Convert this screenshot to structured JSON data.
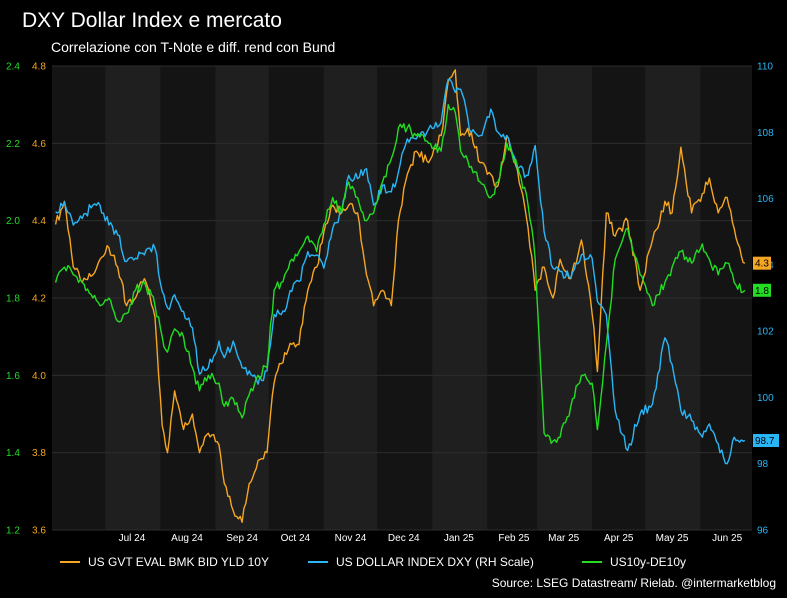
{
  "chart_data": {
    "type": "line",
    "title": "DXY Dollar Index e mercato",
    "subtitle": "Correlazione con T-Note e diff. rend con Bund",
    "source": "Source: LSEG Datastream/ Rielab. @intermarketblog",
    "x_ticks": [
      "Jul 24",
      "Aug 24",
      "Sep 24",
      "Oct 24",
      "Nov 24",
      "Dec 24",
      "Jan 25",
      "Feb 25",
      "Mar 25",
      "Apr 25",
      "May 25",
      "Jun 25"
    ],
    "x_range": [
      "2024-06-01",
      "2025-06-30"
    ],
    "grid": true,
    "legend_position": "bottom",
    "axes": {
      "left_outer": {
        "label": "",
        "ticks": [
          "1.2",
          "1.4",
          "1.6",
          "1.8",
          "2.0",
          "2.2",
          "2.4"
        ],
        "range": [
          1.2,
          2.4
        ],
        "color": "#22dd22"
      },
      "left_inner": {
        "label": "",
        "ticks": [
          "3.6",
          "3.8",
          "4.0",
          "4.2",
          "4.4",
          "4.6",
          "4.8"
        ],
        "range": [
          3.6,
          4.8
        ],
        "color": "#f5a623"
      },
      "right": {
        "label": "",
        "ticks": [
          "96",
          "98",
          "100",
          "102",
          "104",
          "106",
          "108",
          "110"
        ],
        "range": [
          96,
          110
        ],
        "color": "#29b6f6"
      }
    },
    "series": [
      {
        "name": "US GVT EVAL BMK BID YLD 10Y",
        "axis": "left_inner",
        "color": "#f5a623",
        "last_value_label": "4.3",
        "points": [
          [
            "2024-06-03",
            4.39
          ],
          [
            "2024-06-08",
            4.45
          ],
          [
            "2024-06-13",
            4.28
          ],
          [
            "2024-06-18",
            4.24
          ],
          [
            "2024-06-24",
            4.26
          ],
          [
            "2024-06-28",
            4.3
          ],
          [
            "2024-07-03",
            4.33
          ],
          [
            "2024-07-08",
            4.28
          ],
          [
            "2024-07-13",
            4.18
          ],
          [
            "2024-07-18",
            4.2
          ],
          [
            "2024-07-23",
            4.25
          ],
          [
            "2024-07-29",
            4.15
          ],
          [
            "2024-08-02",
            3.87
          ],
          [
            "2024-08-05",
            3.8
          ],
          [
            "2024-08-09",
            3.96
          ],
          [
            "2024-08-14",
            3.86
          ],
          [
            "2024-08-19",
            3.9
          ],
          [
            "2024-08-23",
            3.8
          ],
          [
            "2024-08-28",
            3.85
          ],
          [
            "2024-09-03",
            3.82
          ],
          [
            "2024-09-06",
            3.72
          ],
          [
            "2024-09-11",
            3.65
          ],
          [
            "2024-09-16",
            3.62
          ],
          [
            "2024-09-20",
            3.72
          ],
          [
            "2024-09-25",
            3.78
          ],
          [
            "2024-09-30",
            3.8
          ],
          [
            "2024-10-04",
            3.98
          ],
          [
            "2024-10-08",
            4.03
          ],
          [
            "2024-10-14",
            4.08
          ],
          [
            "2024-10-18",
            4.08
          ],
          [
            "2024-10-23",
            4.22
          ],
          [
            "2024-10-28",
            4.28
          ],
          [
            "2024-11-01",
            4.37
          ],
          [
            "2024-11-06",
            4.44
          ],
          [
            "2024-11-11",
            4.42
          ],
          [
            "2024-11-15",
            4.44
          ],
          [
            "2024-11-20",
            4.42
          ],
          [
            "2024-11-25",
            4.26
          ],
          [
            "2024-11-29",
            4.18
          ],
          [
            "2024-12-04",
            4.22
          ],
          [
            "2024-12-09",
            4.18
          ],
          [
            "2024-12-13",
            4.4
          ],
          [
            "2024-12-18",
            4.52
          ],
          [
            "2024-12-23",
            4.58
          ],
          [
            "2024-12-30",
            4.55
          ],
          [
            "2025-01-06",
            4.62
          ],
          [
            "2025-01-10",
            4.76
          ],
          [
            "2025-01-14",
            4.79
          ],
          [
            "2025-01-17",
            4.62
          ],
          [
            "2025-01-23",
            4.63
          ],
          [
            "2025-01-28",
            4.55
          ],
          [
            "2025-02-03",
            4.52
          ],
          [
            "2025-02-07",
            4.49
          ],
          [
            "2025-02-12",
            4.62
          ],
          [
            "2025-02-18",
            4.53
          ],
          [
            "2025-02-24",
            4.38
          ],
          [
            "2025-02-28",
            4.22
          ],
          [
            "2025-03-05",
            4.28
          ],
          [
            "2025-03-10",
            4.2
          ],
          [
            "2025-03-14",
            4.3
          ],
          [
            "2025-03-20",
            4.25
          ],
          [
            "2025-03-26",
            4.35
          ],
          [
            "2025-04-01",
            4.16
          ],
          [
            "2025-04-04",
            4.01
          ],
          [
            "2025-04-09",
            4.42
          ],
          [
            "2025-04-14",
            4.36
          ],
          [
            "2025-04-21",
            4.4
          ],
          [
            "2025-04-28",
            4.22
          ],
          [
            "2025-05-05",
            4.35
          ],
          [
            "2025-05-12",
            4.45
          ],
          [
            "2025-05-16",
            4.42
          ],
          [
            "2025-05-21",
            4.59
          ],
          [
            "2025-05-27",
            4.42
          ],
          [
            "2025-06-02",
            4.47
          ],
          [
            "2025-06-06",
            4.51
          ],
          [
            "2025-06-11",
            4.42
          ],
          [
            "2025-06-16",
            4.46
          ],
          [
            "2025-06-20",
            4.38
          ],
          [
            "2025-06-26",
            4.29
          ]
        ]
      },
      {
        "name": "US DOLLAR INDEX DXY (RH Scale)",
        "axis": "right",
        "color": "#29b6f6",
        "last_value_label": "98.7",
        "points": [
          [
            "2024-06-03",
            105.6
          ],
          [
            "2024-06-08",
            105.9
          ],
          [
            "2024-06-13",
            105.2
          ],
          [
            "2024-06-18",
            105.4
          ],
          [
            "2024-06-24",
            105.8
          ],
          [
            "2024-06-28",
            105.8
          ],
          [
            "2024-07-03",
            105.2
          ],
          [
            "2024-07-08",
            104.9
          ],
          [
            "2024-07-13",
            104.1
          ],
          [
            "2024-07-18",
            104.2
          ],
          [
            "2024-07-23",
            104.3
          ],
          [
            "2024-07-29",
            104.5
          ],
          [
            "2024-08-02",
            103.2
          ],
          [
            "2024-08-05",
            102.7
          ],
          [
            "2024-08-09",
            103.1
          ],
          [
            "2024-08-14",
            102.6
          ],
          [
            "2024-08-19",
            102.1
          ],
          [
            "2024-08-23",
            100.7
          ],
          [
            "2024-08-28",
            100.9
          ],
          [
            "2024-09-03",
            101.7
          ],
          [
            "2024-09-06",
            101.2
          ],
          [
            "2024-09-11",
            101.7
          ],
          [
            "2024-09-16",
            100.9
          ],
          [
            "2024-09-20",
            100.8
          ],
          [
            "2024-09-25",
            100.4
          ],
          [
            "2024-09-30",
            100.8
          ],
          [
            "2024-10-04",
            102.5
          ],
          [
            "2024-10-08",
            102.5
          ],
          [
            "2024-10-14",
            103.2
          ],
          [
            "2024-10-18",
            103.5
          ],
          [
            "2024-10-23",
            104.4
          ],
          [
            "2024-10-28",
            104.3
          ],
          [
            "2024-11-01",
            103.9
          ],
          [
            "2024-11-06",
            105.1
          ],
          [
            "2024-11-11",
            105.6
          ],
          [
            "2024-11-15",
            106.7
          ],
          [
            "2024-11-20",
            106.6
          ],
          [
            "2024-11-25",
            106.9
          ],
          [
            "2024-11-29",
            105.8
          ],
          [
            "2024-12-04",
            106.4
          ],
          [
            "2024-12-09",
            106.2
          ],
          [
            "2024-12-13",
            106.8
          ],
          [
            "2024-12-18",
            107.8
          ],
          [
            "2024-12-23",
            107.8
          ],
          [
            "2024-12-30",
            108.1
          ],
          [
            "2025-01-06",
            108.3
          ],
          [
            "2025-01-10",
            109.6
          ],
          [
            "2025-01-14",
            109.2
          ],
          [
            "2025-01-17",
            109.3
          ],
          [
            "2025-01-23",
            108.0
          ],
          [
            "2025-01-28",
            107.9
          ],
          [
            "2025-02-03",
            108.7
          ],
          [
            "2025-02-07",
            108.0
          ],
          [
            "2025-02-12",
            107.9
          ],
          [
            "2025-02-18",
            106.9
          ],
          [
            "2025-02-24",
            106.7
          ],
          [
            "2025-02-28",
            107.6
          ],
          [
            "2025-03-05",
            105.0
          ],
          [
            "2025-03-10",
            103.9
          ],
          [
            "2025-03-14",
            103.8
          ],
          [
            "2025-03-20",
            103.6
          ],
          [
            "2025-03-26",
            104.3
          ],
          [
            "2025-04-01",
            104.2
          ],
          [
            "2025-04-04",
            102.9
          ],
          [
            "2025-04-09",
            102.5
          ],
          [
            "2025-04-14",
            99.6
          ],
          [
            "2025-04-21",
            98.4
          ],
          [
            "2025-04-28",
            99.5
          ],
          [
            "2025-05-05",
            99.8
          ],
          [
            "2025-05-12",
            101.8
          ],
          [
            "2025-05-16",
            101.0
          ],
          [
            "2025-05-21",
            99.6
          ],
          [
            "2025-05-27",
            99.3
          ],
          [
            "2025-06-02",
            98.8
          ],
          [
            "2025-06-06",
            99.2
          ],
          [
            "2025-06-11",
            98.6
          ],
          [
            "2025-06-16",
            98.0
          ],
          [
            "2025-06-20",
            98.8
          ],
          [
            "2025-06-26",
            98.7
          ]
        ]
      },
      {
        "name": "US10y-DE10y",
        "axis": "left_outer",
        "color": "#22dd22",
        "last_value_label": "1.8",
        "points": [
          [
            "2024-06-03",
            1.84
          ],
          [
            "2024-06-08",
            1.88
          ],
          [
            "2024-06-13",
            1.86
          ],
          [
            "2024-06-18",
            1.84
          ],
          [
            "2024-06-24",
            1.8
          ],
          [
            "2024-06-28",
            1.78
          ],
          [
            "2024-07-03",
            1.8
          ],
          [
            "2024-07-08",
            1.74
          ],
          [
            "2024-07-13",
            1.76
          ],
          [
            "2024-07-18",
            1.82
          ],
          [
            "2024-07-23",
            1.84
          ],
          [
            "2024-07-29",
            1.78
          ],
          [
            "2024-08-02",
            1.7
          ],
          [
            "2024-08-05",
            1.66
          ],
          [
            "2024-08-09",
            1.72
          ],
          [
            "2024-08-14",
            1.7
          ],
          [
            "2024-08-19",
            1.62
          ],
          [
            "2024-08-23",
            1.56
          ],
          [
            "2024-08-28",
            1.6
          ],
          [
            "2024-09-03",
            1.58
          ],
          [
            "2024-09-06",
            1.52
          ],
          [
            "2024-09-11",
            1.54
          ],
          [
            "2024-09-16",
            1.49
          ],
          [
            "2024-09-20",
            1.55
          ],
          [
            "2024-09-25",
            1.6
          ],
          [
            "2024-09-30",
            1.62
          ],
          [
            "2024-10-04",
            1.82
          ],
          [
            "2024-10-08",
            1.84
          ],
          [
            "2024-10-14",
            1.9
          ],
          [
            "2024-10-18",
            1.92
          ],
          [
            "2024-10-23",
            1.96
          ],
          [
            "2024-10-28",
            1.92
          ],
          [
            "2024-11-01",
            1.99
          ],
          [
            "2024-11-06",
            2.06
          ],
          [
            "2024-11-11",
            2.02
          ],
          [
            "2024-11-15",
            2.1
          ],
          [
            "2024-11-20",
            2.06
          ],
          [
            "2024-11-25",
            2.0
          ],
          [
            "2024-11-29",
            2.02
          ],
          [
            "2024-12-04",
            2.1
          ],
          [
            "2024-12-09",
            2.16
          ],
          [
            "2024-12-13",
            2.24
          ],
          [
            "2024-12-18",
            2.24
          ],
          [
            "2024-12-23",
            2.22
          ],
          [
            "2024-12-30",
            2.2
          ],
          [
            "2025-01-06",
            2.18
          ],
          [
            "2025-01-10",
            2.3
          ],
          [
            "2025-01-14",
            2.28
          ],
          [
            "2025-01-17",
            2.18
          ],
          [
            "2025-01-23",
            2.14
          ],
          [
            "2025-01-28",
            2.1
          ],
          [
            "2025-02-03",
            2.06
          ],
          [
            "2025-02-07",
            2.1
          ],
          [
            "2025-02-12",
            2.2
          ],
          [
            "2025-02-18",
            2.14
          ],
          [
            "2025-02-24",
            2.04
          ],
          [
            "2025-02-28",
            1.9
          ],
          [
            "2025-03-05",
            1.45
          ],
          [
            "2025-03-10",
            1.43
          ],
          [
            "2025-03-14",
            1.44
          ],
          [
            "2025-03-20",
            1.52
          ],
          [
            "2025-03-26",
            1.6
          ],
          [
            "2025-04-01",
            1.58
          ],
          [
            "2025-04-04",
            1.46
          ],
          [
            "2025-04-09",
            1.68
          ],
          [
            "2025-04-14",
            1.9
          ],
          [
            "2025-04-21",
            1.98
          ],
          [
            "2025-04-28",
            1.86
          ],
          [
            "2025-05-05",
            1.78
          ],
          [
            "2025-05-12",
            1.84
          ],
          [
            "2025-05-16",
            1.88
          ],
          [
            "2025-05-21",
            1.92
          ],
          [
            "2025-05-27",
            1.89
          ],
          [
            "2025-06-02",
            1.94
          ],
          [
            "2025-06-06",
            1.9
          ],
          [
            "2025-06-11",
            1.86
          ],
          [
            "2025-06-16",
            1.89
          ],
          [
            "2025-06-20",
            1.84
          ],
          [
            "2025-06-26",
            1.82
          ]
        ]
      }
    ]
  }
}
